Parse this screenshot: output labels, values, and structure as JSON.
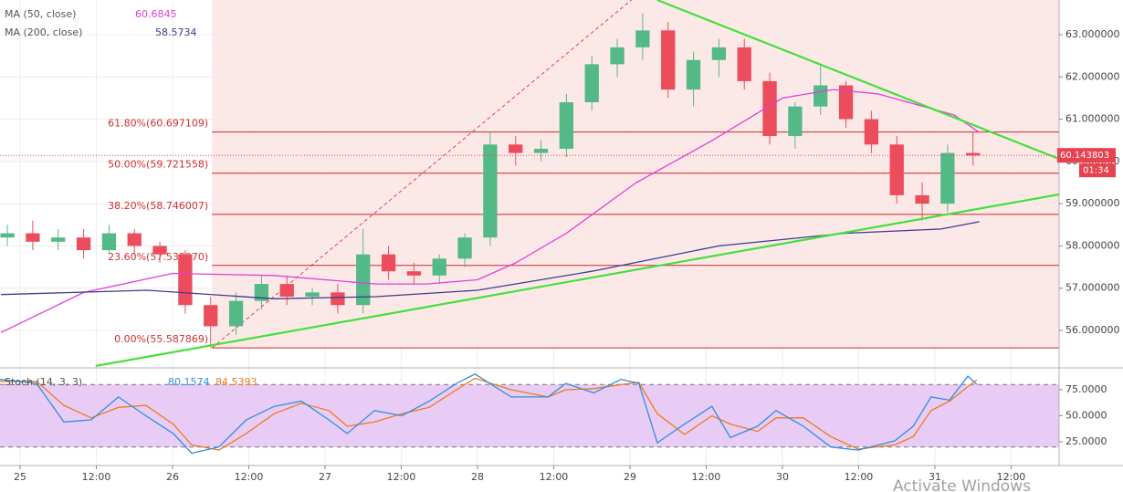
{
  "chart_data": {
    "type": "candlestick",
    "x": [
      -2,
      2,
      6,
      10,
      14,
      18,
      22,
      26,
      30,
      34,
      38,
      42,
      46,
      50,
      54,
      58,
      62,
      66,
      70,
      74,
      78,
      82,
      86,
      90,
      94,
      98,
      102,
      106,
      110,
      114,
      118,
      122,
      126,
      130,
      134,
      138,
      142,
      146,
      150
    ],
    "open": [
      58.2,
      58.3,
      58.1,
      58.2,
      57.9,
      58.3,
      58.0,
      57.8,
      56.6,
      56.1,
      56.7,
      57.1,
      56.8,
      56.9,
      56.6,
      57.8,
      57.4,
      57.3,
      57.7,
      58.2,
      60.4,
      60.2,
      60.3,
      61.4,
      62.3,
      62.7,
      63.1,
      61.7,
      62.4,
      62.7,
      61.9,
      60.6,
      61.3,
      61.8,
      61.0,
      60.4,
      59.2,
      59.0,
      60.2
    ],
    "high": [
      58.5,
      58.6,
      58.4,
      58.4,
      58.5,
      58.4,
      58.1,
      57.9,
      56.8,
      56.9,
      57.3,
      57.3,
      57.0,
      57.1,
      58.4,
      58.0,
      57.6,
      57.8,
      58.3,
      60.7,
      60.6,
      60.5,
      61.6,
      62.5,
      62.9,
      63.5,
      63.3,
      62.6,
      62.9,
      62.9,
      62.1,
      61.4,
      62.3,
      61.9,
      61.2,
      60.6,
      59.5,
      60.4,
      60.7
    ],
    "low": [
      58.0,
      57.9,
      57.9,
      57.7,
      57.8,
      57.8,
      57.6,
      56.4,
      55.587869,
      55.9,
      56.5,
      56.6,
      56.6,
      56.4,
      56.4,
      57.2,
      57.1,
      57.1,
      57.5,
      58.0,
      59.9,
      60.0,
      60.1,
      61.2,
      62.0,
      62.4,
      61.5,
      61.3,
      62.0,
      61.7,
      60.4,
      60.3,
      61.1,
      60.8,
      60.2,
      59.0,
      58.6,
      58.8,
      59.9
    ],
    "close": [
      58.3,
      58.1,
      58.2,
      57.9,
      58.3,
      58.0,
      57.8,
      56.6,
      56.1,
      56.7,
      57.1,
      56.8,
      56.9,
      56.6,
      57.8,
      57.4,
      57.3,
      57.7,
      58.2,
      60.4,
      60.2,
      60.3,
      61.4,
      62.3,
      62.7,
      63.1,
      61.7,
      62.4,
      62.7,
      61.9,
      60.6,
      61.3,
      61.8,
      61.0,
      60.4,
      59.2,
      59.0,
      60.2,
      60.14
    ],
    "up_color": "#53b987",
    "down_color": "#eb4d5c",
    "xlim": [
      -3.16,
      163.55
    ],
    "xticks": [
      {
        "value": 0,
        "label": "25"
      },
      {
        "value": 12,
        "label": "12:00"
      },
      {
        "value": 24,
        "label": "26"
      },
      {
        "value": 36,
        "label": "12:00"
      },
      {
        "value": 48,
        "label": "27"
      },
      {
        "value": 60,
        "label": "12:00"
      },
      {
        "value": 72,
        "label": "28"
      },
      {
        "value": 84,
        "label": "12:00"
      },
      {
        "value": 96,
        "label": "29"
      },
      {
        "value": 108,
        "label": "12:00"
      },
      {
        "value": 120,
        "label": "30"
      },
      {
        "value": 132,
        "label": "12:00"
      },
      {
        "value": 144,
        "label": "31"
      },
      {
        "value": 156,
        "label": "12:00"
      }
    ],
    "ylim": [
      55.115,
      63.82
    ],
    "yticks": [
      {
        "value": 56,
        "label": "56.000000"
      },
      {
        "value": 57,
        "label": "57.000000"
      },
      {
        "value": 58,
        "label": "58.000000"
      },
      {
        "value": 59,
        "label": "59.000000"
      },
      {
        "value": 60,
        "label": "60.000000"
      },
      {
        "value": 61,
        "label": "61.000000"
      },
      {
        "value": 62,
        "label": "62.000000"
      },
      {
        "value": 63,
        "label": "63.000000"
      }
    ],
    "last_price": 60.143803,
    "countdown": "01:34",
    "indicators": [
      {
        "name": "MA (50, close)",
        "color": "#e040d8",
        "last": 60.6845,
        "x": [
          -3,
          10,
          24,
          40,
          56,
          64,
          72,
          78,
          86,
          97,
          109,
          120,
          128,
          135,
          147,
          151
        ],
        "values": [
          55.95,
          56.9,
          57.35,
          57.3,
          57.1,
          57.1,
          57.2,
          57.6,
          58.3,
          59.5,
          60.5,
          61.5,
          61.7,
          61.6,
          61.1,
          60.6845
        ]
      },
      {
        "name": "MA (200, close)",
        "color": "#3c3c8c",
        "last": 58.5734,
        "x": [
          -3,
          20,
          40,
          56,
          72,
          90,
          110,
          130,
          145,
          151
        ],
        "values": [
          56.85,
          56.95,
          56.75,
          56.8,
          56.95,
          57.4,
          58.0,
          58.3,
          58.4,
          58.5734
        ]
      }
    ],
    "fib_anchor": {
      "x": [
        30.2,
        96.5
      ],
      "values": [
        55.587869,
        63.855
      ]
    },
    "fib_levels": [
      {
        "label": "61.80%(60.697109)",
        "value": 60.697109
      },
      {
        "label": "50.00%(59.721558)",
        "value": 59.721558
      },
      {
        "label": "38.20%(58.746007)",
        "value": 58.746007
      },
      {
        "label": "23.60%(57.538970)",
        "value": 57.53897
      },
      {
        "label": "0.00%(55.587869)",
        "value": 55.587869
      }
    ],
    "trendlines": [
      {
        "color": "#44e03c",
        "x": [
          11.9,
          163.55
        ],
        "values": [
          55.16,
          59.22
        ]
      },
      {
        "color": "#44e03c",
        "x": [
          100.3,
          163.55
        ],
        "values": [
          63.82,
          60.06
        ]
      }
    ],
    "stoch": {
      "name": "Stoch (14, 3, 3)",
      "ylim": [
        2.2,
        96
      ],
      "yticks": [
        {
          "value": 25,
          "label": "25.0000"
        },
        {
          "value": 50,
          "label": "50.0000"
        },
        {
          "value": 75,
          "label": "75.0000"
        }
      ],
      "bands": [
        80,
        20
      ],
      "x": [
        -3.2,
        2.6,
        6.9,
        11.2,
        15.5,
        19.8,
        24.1,
        27.0,
        31.3,
        35.6,
        40.0,
        44.3,
        48.6,
        51.5,
        55.8,
        60.1,
        64.4,
        68.7,
        71.6,
        77.3,
        83.1,
        85.9,
        90.3,
        94.6,
        97.4,
        100.3,
        104.6,
        108.9,
        111.8,
        116.1,
        119.0,
        123.3,
        127.6,
        131.9,
        137.7,
        140.6,
        143.4,
        146.3,
        149.2,
        150.6
      ],
      "k": {
        "color": "#2f8fe0",
        "last": 80.1574,
        "values": [
          85,
          81,
          44,
          46,
          68,
          50,
          33,
          14,
          20,
          46,
          59,
          64,
          46,
          33,
          55,
          50,
          64,
          81,
          90,
          68,
          68,
          81,
          72,
          85,
          81,
          24,
          42,
          59,
          29,
          40,
          55,
          40,
          20,
          17,
          26,
          40,
          68,
          65,
          88,
          80.1574
        ]
      },
      "d": {
        "color": "#f07a1a",
        "last": 84.5393,
        "values": [
          83,
          83,
          60,
          48,
          58,
          60,
          42,
          22,
          17,
          33,
          52,
          62,
          55,
          40,
          44,
          52,
          58,
          75,
          86,
          75,
          68,
          75,
          76,
          80,
          82,
          52,
          32,
          50,
          42,
          35,
          48,
          48,
          30,
          18,
          22,
          30,
          55,
          64,
          78,
          84.5393
        ]
      }
    }
  },
  "watermark": "Activate Windows"
}
